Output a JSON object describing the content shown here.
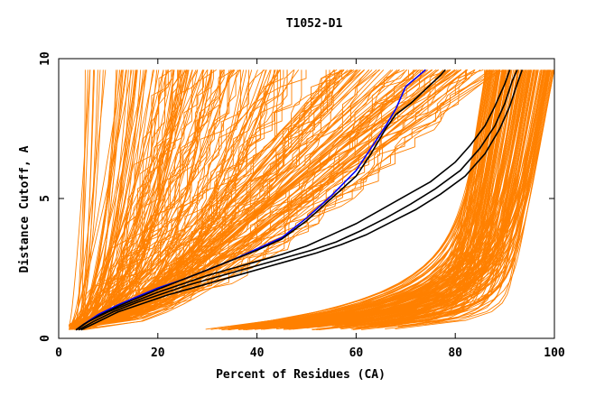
{
  "chart_data": {
    "type": "line",
    "title": "T1052-D1",
    "xlabel": "Percent of Residues (CA)",
    "ylabel": "Distance Cutoff, A",
    "xlim": [
      0,
      100
    ],
    "ylim": [
      0,
      10
    ],
    "x_ticks": [
      0,
      20,
      40,
      60,
      80,
      100
    ],
    "x_tick_labels": [
      "0",
      "20",
      "40",
      "60",
      "80",
      "100"
    ],
    "y_ticks": [
      0,
      5,
      10
    ],
    "y_tick_labels": [
      "0",
      "5",
      "10"
    ],
    "background_color": "#ffffff",
    "background_series_color": "#ff8000",
    "background_series_count": 400,
    "background_series_description": "individual model GDT curves (percent of residues within distance cutoff)",
    "highlighted_series": [
      {
        "name": "blue curve",
        "color": "#0000ff",
        "points": [
          [
            3.5,
            0.3
          ],
          [
            5,
            0.5
          ],
          [
            8,
            0.85
          ],
          [
            12,
            1.2
          ],
          [
            16,
            1.5
          ],
          [
            20,
            1.8
          ],
          [
            25,
            2.1
          ],
          [
            30,
            2.45
          ],
          [
            35,
            2.8
          ],
          [
            40,
            3.2
          ],
          [
            45,
            3.6
          ],
          [
            50,
            4.3
          ],
          [
            55,
            5.1
          ],
          [
            60,
            6.0
          ],
          [
            63,
            6.8
          ],
          [
            66,
            7.6
          ],
          [
            68,
            8.2
          ],
          [
            70,
            9.0
          ],
          [
            72,
            9.3
          ],
          [
            74,
            9.6
          ]
        ]
      },
      {
        "name": "black curve 1",
        "color": "#000000",
        "points": [
          [
            3.5,
            0.3
          ],
          [
            5,
            0.5
          ],
          [
            8,
            0.8
          ],
          [
            12,
            1.15
          ],
          [
            16,
            1.45
          ],
          [
            20,
            1.75
          ],
          [
            25,
            2.1
          ],
          [
            30,
            2.45
          ],
          [
            35,
            2.8
          ],
          [
            40,
            3.15
          ],
          [
            45,
            3.55
          ],
          [
            50,
            4.2
          ],
          [
            55,
            5.0
          ],
          [
            60,
            5.8
          ],
          [
            63,
            6.6
          ],
          [
            66,
            7.5
          ],
          [
            68,
            8.0
          ],
          [
            71,
            8.4
          ],
          [
            74,
            8.9
          ],
          [
            77,
            9.4
          ],
          [
            78,
            9.6
          ]
        ]
      },
      {
        "name": "black curve 2",
        "color": "#000000",
        "points": [
          [
            3.5,
            0.3
          ],
          [
            6,
            0.6
          ],
          [
            10,
            0.95
          ],
          [
            15,
            1.3
          ],
          [
            20,
            1.65
          ],
          [
            25,
            1.95
          ],
          [
            30,
            2.25
          ],
          [
            35,
            2.5
          ],
          [
            40,
            2.75
          ],
          [
            45,
            3.0
          ],
          [
            50,
            3.3
          ],
          [
            55,
            3.7
          ],
          [
            60,
            4.1
          ],
          [
            65,
            4.6
          ],
          [
            70,
            5.1
          ],
          [
            75,
            5.6
          ],
          [
            80,
            6.3
          ],
          [
            83,
            6.9
          ],
          [
            86,
            7.6
          ],
          [
            88,
            8.3
          ],
          [
            90,
            9.1
          ],
          [
            91,
            9.6
          ]
        ]
      },
      {
        "name": "black curve 3",
        "color": "#000000",
        "points": [
          [
            4,
            0.3
          ],
          [
            7,
            0.6
          ],
          [
            11,
            0.95
          ],
          [
            16,
            1.3
          ],
          [
            21,
            1.6
          ],
          [
            26,
            1.9
          ],
          [
            31,
            2.15
          ],
          [
            36,
            2.4
          ],
          [
            41,
            2.65
          ],
          [
            46,
            2.9
          ],
          [
            51,
            3.15
          ],
          [
            56,
            3.45
          ],
          [
            61,
            3.85
          ],
          [
            66,
            4.3
          ],
          [
            71,
            4.8
          ],
          [
            76,
            5.35
          ],
          [
            81,
            6.0
          ],
          [
            85,
            6.8
          ],
          [
            88,
            7.6
          ],
          [
            90,
            8.4
          ],
          [
            91.5,
            9.2
          ],
          [
            92.5,
            9.6
          ]
        ]
      },
      {
        "name": "black curve 4",
        "color": "#000000",
        "points": [
          [
            4.5,
            0.3
          ],
          [
            8,
            0.6
          ],
          [
            12,
            0.95
          ],
          [
            17,
            1.25
          ],
          [
            22,
            1.55
          ],
          [
            27,
            1.8
          ],
          [
            32,
            2.05
          ],
          [
            37,
            2.3
          ],
          [
            42,
            2.55
          ],
          [
            47,
            2.8
          ],
          [
            52,
            3.05
          ],
          [
            57,
            3.35
          ],
          [
            62,
            3.7
          ],
          [
            67,
            4.15
          ],
          [
            72,
            4.6
          ],
          [
            77,
            5.15
          ],
          [
            82,
            5.8
          ],
          [
            86,
            6.6
          ],
          [
            89,
            7.5
          ],
          [
            91,
            8.3
          ],
          [
            92.5,
            9.1
          ],
          [
            93.5,
            9.6
          ]
        ]
      }
    ]
  }
}
